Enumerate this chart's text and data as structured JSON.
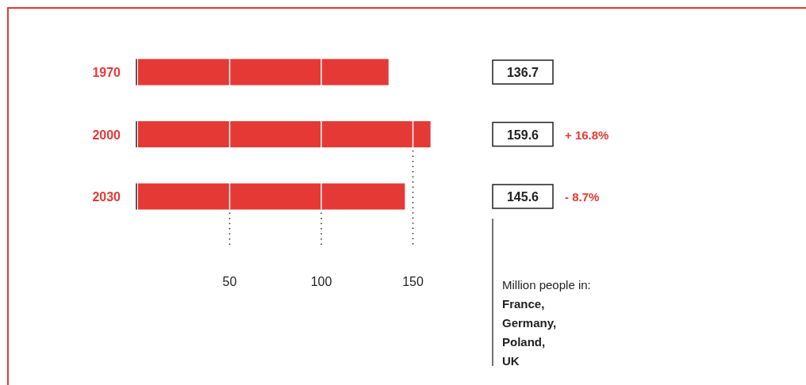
{
  "chart_data": {
    "type": "bar",
    "orientation": "horizontal",
    "categories": [
      "1970",
      "2000",
      "2030"
    ],
    "values": [
      136.7,
      159.6,
      145.6
    ],
    "color": "#e53935",
    "xlim": [
      0,
      160
    ],
    "xticks": [
      50,
      100,
      150
    ],
    "grid": "x",
    "data_labels": true,
    "annotations": [
      "+ 16.8%",
      "- 8.7%",
      "Million people in:",
      "France,",
      "Germany,",
      "Poland,",
      "UK"
    ]
  }
}
